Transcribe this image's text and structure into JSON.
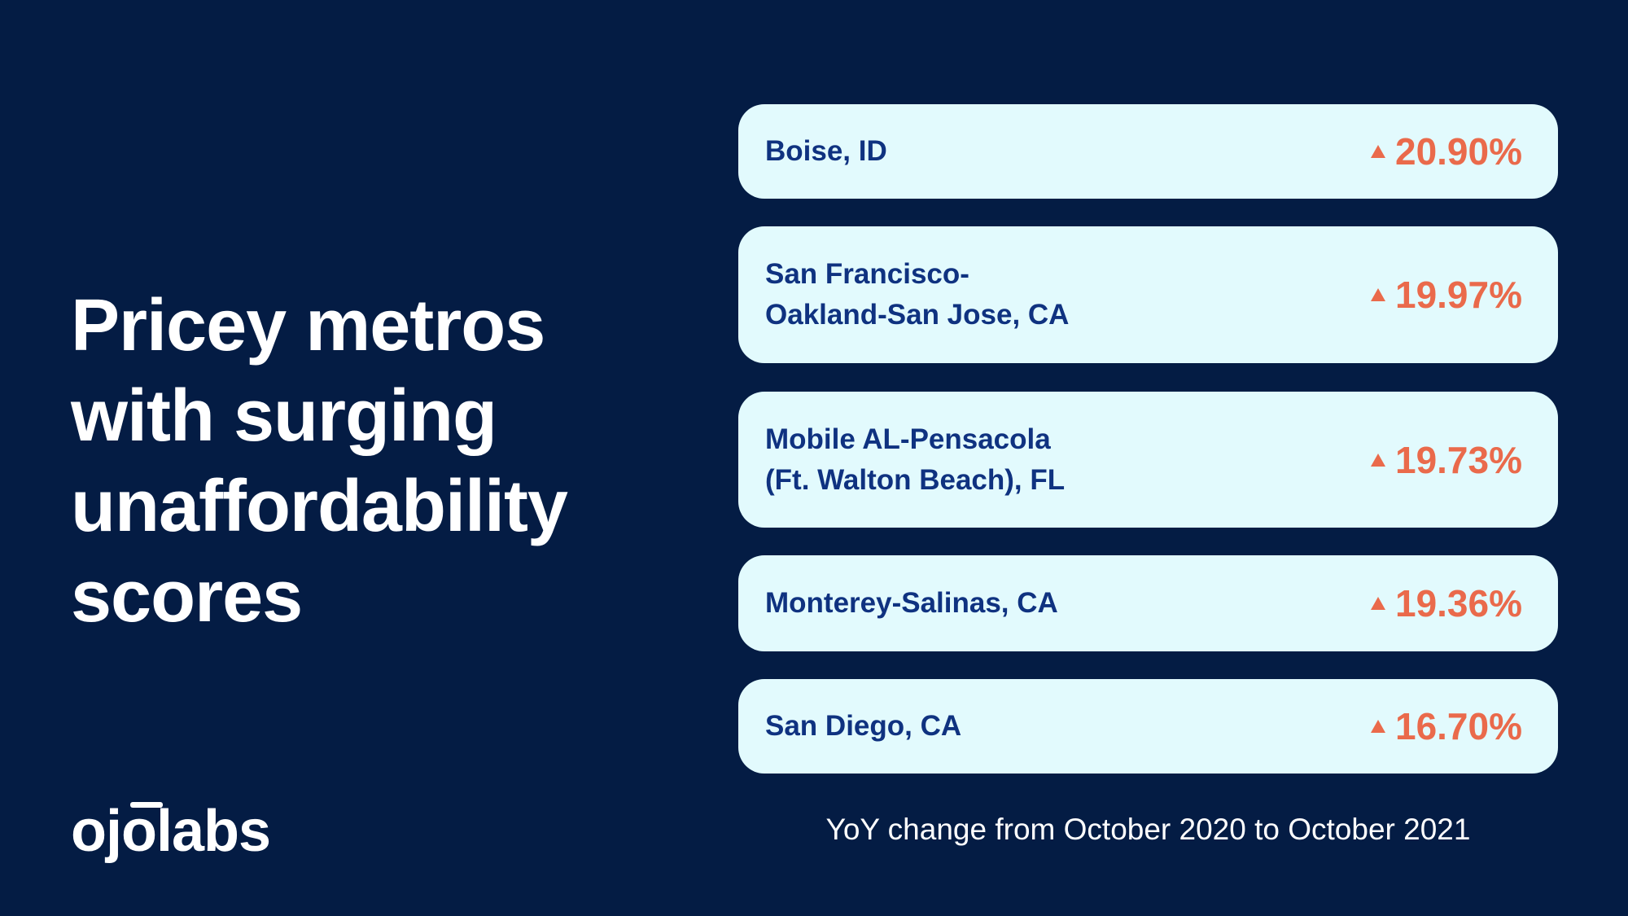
{
  "title_lines": [
    "Pricey metros",
    "with surging",
    "unaffordability",
    "scores"
  ],
  "items": [
    {
      "name_lines": [
        "Boise, ID"
      ],
      "change": "20.90%"
    },
    {
      "name_lines": [
        "San Francisco-",
        "Oakland-San Jose, CA"
      ],
      "change": "19.97%"
    },
    {
      "name_lines": [
        "Mobile AL-Pensacola",
        "(Ft. Walton Beach), FL"
      ],
      "change": "19.73%"
    },
    {
      "name_lines": [
        "Monterey-Salinas, CA"
      ],
      "change": "19.36%"
    },
    {
      "name_lines": [
        "San Diego, CA"
      ],
      "change": "16.70%"
    }
  ],
  "footnote": "YoY change from October 2020 to October 2021",
  "logo": "ojolabs"
}
